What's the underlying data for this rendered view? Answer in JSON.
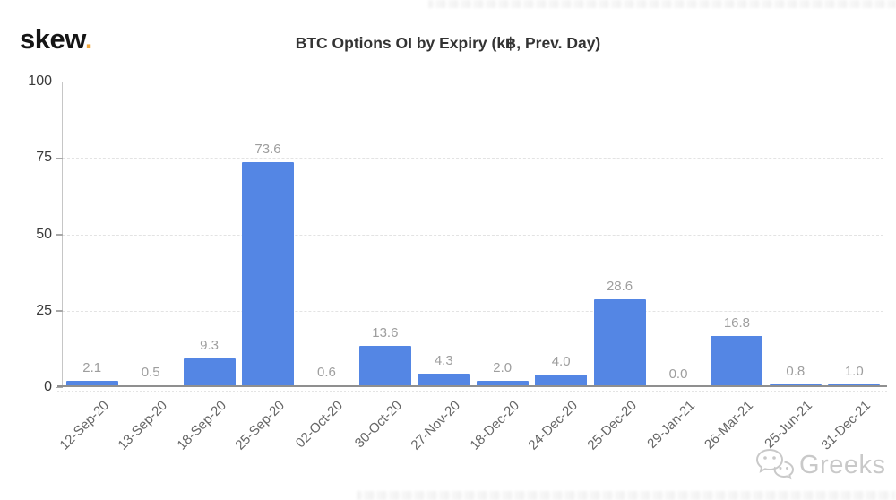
{
  "header": {
    "logo_text": "skew",
    "logo_dot": ".",
    "title": "BTC Options OI by Expiry (k฿, Prev. Day)"
  },
  "watermark": {
    "icon": "wechat-icon",
    "label": "Greeks"
  },
  "chart_data": {
    "type": "bar",
    "title": "BTC Options OI by Expiry (k฿, Prev. Day)",
    "categories": [
      "12-Sep-20",
      "13-Sep-20",
      "18-Sep-20",
      "25-Sep-20",
      "02-Oct-20",
      "30-Oct-20",
      "27-Nov-20",
      "18-Dec-20",
      "24-Dec-20",
      "25-Dec-20",
      "29-Jan-21",
      "26-Mar-21",
      "25-Jun-21",
      "31-Dec-21"
    ],
    "values": [
      2.1,
      0.5,
      9.3,
      73.6,
      0.6,
      13.6,
      4.3,
      2.0,
      4.0,
      28.6,
      0.0,
      16.8,
      0.8,
      1.0
    ],
    "value_labels": [
      "2.1",
      "0.5",
      "9.3",
      "73.6",
      "0.6",
      "13.6",
      "4.3",
      "2.0",
      "4.0",
      "28.6",
      "0.0",
      "16.8",
      "0.8",
      "1.0"
    ],
    "xlabel": "",
    "ylabel": "",
    "ylim": [
      0,
      100
    ],
    "yticks": [
      0,
      25,
      50,
      75,
      100
    ],
    "grid": "horizontal-dashed",
    "legend": "none",
    "bar_color": "#5486e4",
    "value_label_color": "#9e9e9e",
    "xtick_color": "#666666",
    "ytick_color": "#3a3a3a"
  },
  "colors": {
    "logo_text": "#151515",
    "logo_dot": "#f2a73b",
    "title": "#333333",
    "bar": "#5486e4",
    "gridline": "#e3e3e3",
    "axis_line": "#8f8f8f",
    "watermark": "#c9c9c9"
  }
}
